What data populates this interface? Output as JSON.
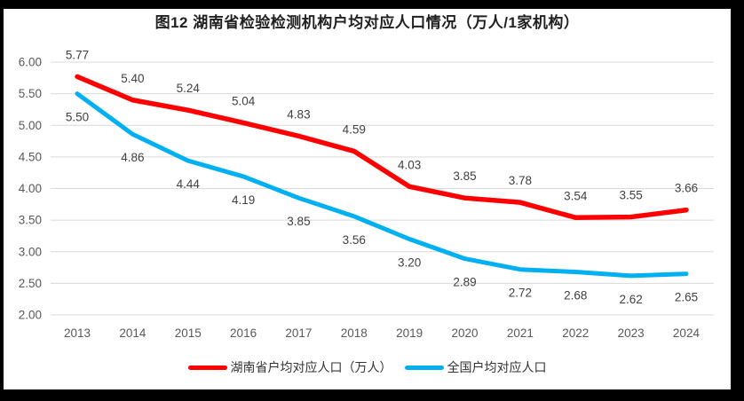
{
  "chart_data": {
    "type": "line",
    "title": "图12 湖南省检验检测机构户均对应人口情况（万人/1家机构）",
    "categories": [
      "2013",
      "2014",
      "2015",
      "2016",
      "2017",
      "2018",
      "2019",
      "2020",
      "2021",
      "2022",
      "2023",
      "2024"
    ],
    "series": [
      {
        "name": "湖南省户均对应人口（万人）",
        "color": "#FF0000",
        "label_position": "above",
        "values": [
          5.77,
          5.4,
          5.24,
          5.04,
          4.83,
          4.59,
          4.03,
          3.85,
          3.78,
          3.54,
          3.55,
          3.66
        ]
      },
      {
        "name": "全国户均对应人口",
        "color": "#00B0F0",
        "label_position": "below",
        "values": [
          5.5,
          4.86,
          4.44,
          4.19,
          3.85,
          3.56,
          3.2,
          2.89,
          2.72,
          2.68,
          2.62,
          2.65
        ]
      }
    ],
    "xlabel": "",
    "ylabel": "",
    "ylim": [
      2.0,
      6.0
    ],
    "ytick_step": 0.5,
    "value_decimals": 2,
    "grid": true,
    "legend_position": "bottom",
    "gridline_color": "#D9D9D9",
    "axis_text_color": "#595959",
    "data_label_color": "#404040",
    "background_color": "#FFFFFF",
    "frame_color": "#000000"
  }
}
